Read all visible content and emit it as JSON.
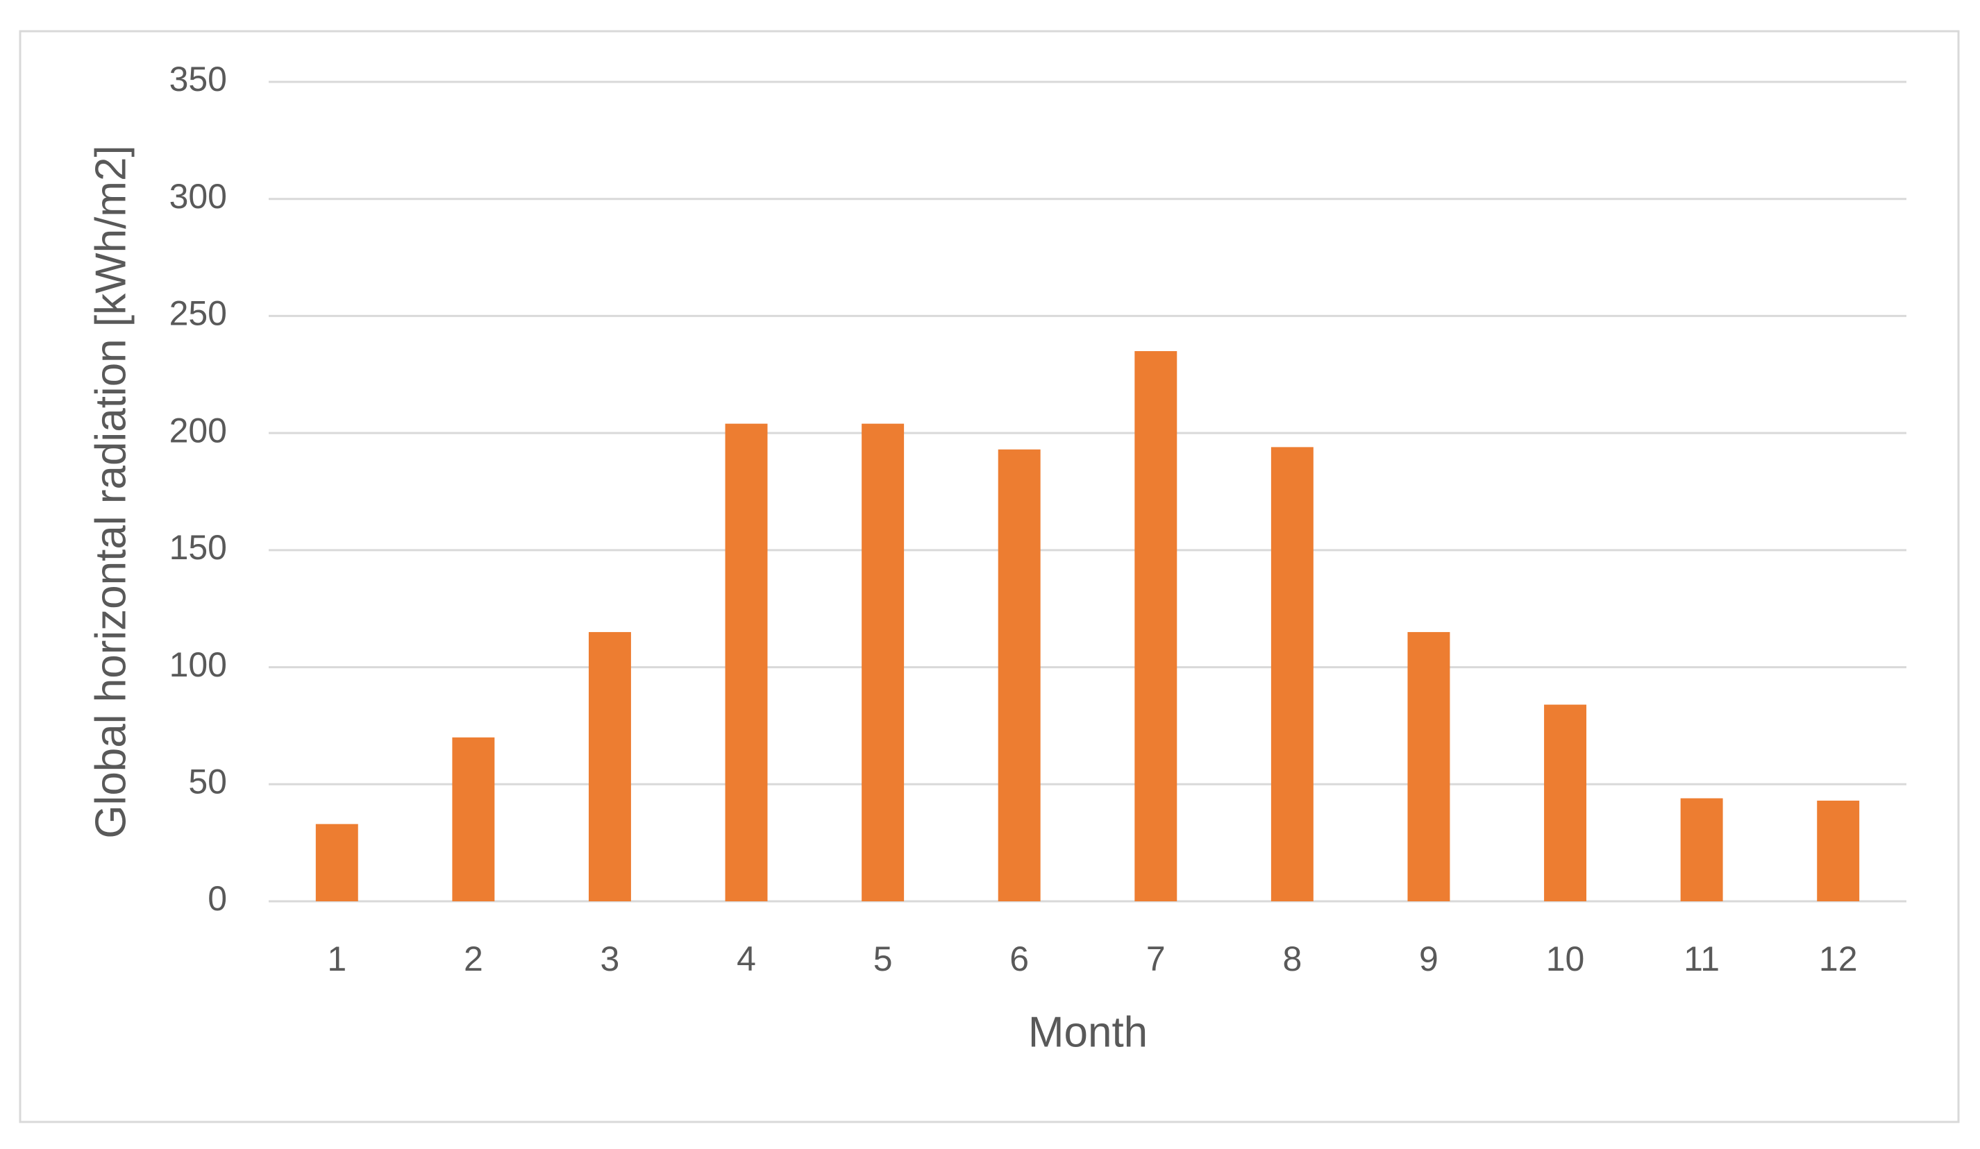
{
  "chart_data": {
    "type": "bar",
    "x_label": "Month",
    "y_label": "Global horizontal radiation [kWh/m2]",
    "categories": [
      "1",
      "2",
      "3",
      "4",
      "5",
      "6",
      "7",
      "8",
      "9",
      "10",
      "11",
      "12"
    ],
    "values": [
      33,
      70,
      115,
      204,
      204,
      193,
      235,
      194,
      115,
      84,
      44,
      43
    ],
    "color": "#ed7d31",
    "ylim": [
      0,
      350
    ],
    "yticks": [
      0,
      50,
      100,
      150,
      200,
      250,
      300,
      350
    ],
    "grid": true
  }
}
